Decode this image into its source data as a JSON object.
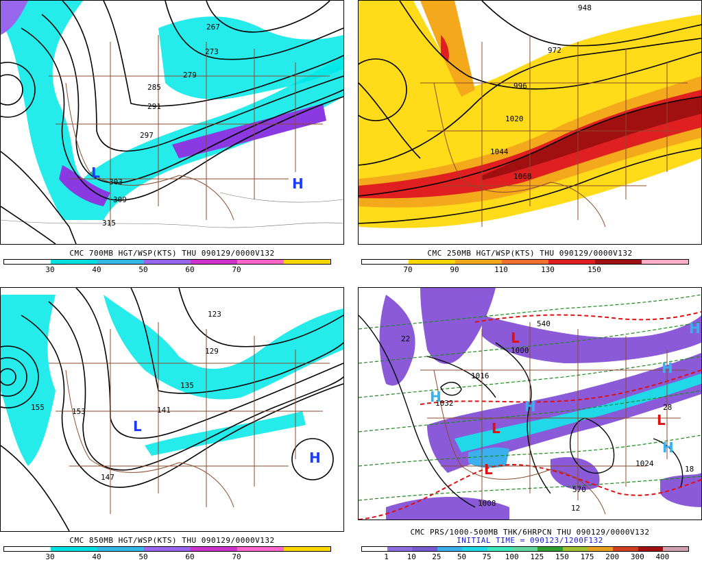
{
  "panels": [
    {
      "id": "p700",
      "caption": "CMC 700MB HGT/WSP(KTS) THU 090129/0000V132",
      "subcaption": "",
      "colorbar": {
        "colors": [
          "#ffffff",
          "#00e0e0",
          "#33b8e8",
          "#9966ee",
          "#cc33cc",
          "#ff66cc",
          "#ffd700"
        ],
        "ticks": [
          "30",
          "40",
          "50",
          "60",
          "70"
        ]
      },
      "contour_labels": [
        "267",
        "273",
        "279",
        "285",
        "291",
        "297",
        "303",
        "309",
        "315"
      ],
      "centers": [
        {
          "letter": "L",
          "color": "#1a3cff"
        },
        {
          "letter": "H",
          "color": "#1a3cff"
        }
      ]
    },
    {
      "id": "p250",
      "caption": "CMC 250MB HGT/WSP(KTS) THU 090129/0000V132",
      "subcaption": "",
      "colorbar": {
        "colors": [
          "#ffffff",
          "#ffd700",
          "#f4a81c",
          "#f07030",
          "#e02020",
          "#a01010",
          "#ffb0c8"
        ],
        "ticks": [
          "70",
          "90",
          "110",
          "130",
          "150"
        ]
      },
      "contour_labels": [
        "948",
        "972",
        "996",
        "1020",
        "1044",
        "1068"
      ],
      "centers": []
    },
    {
      "id": "p850",
      "caption": "CMC 850MB HGT/WSP(KTS) THU 090129/0000V132",
      "subcaption": "",
      "colorbar": {
        "colors": [
          "#ffffff",
          "#00e0e0",
          "#33b8e8",
          "#9966ee",
          "#cc33cc",
          "#ff66cc",
          "#ffd700"
        ],
        "ticks": [
          "30",
          "40",
          "50",
          "60",
          "70"
        ]
      },
      "contour_labels": [
        "123",
        "129",
        "135",
        "141",
        "147",
        "153",
        "155"
      ],
      "centers": [
        {
          "letter": "L",
          "color": "#1a3cff"
        },
        {
          "letter": "H",
          "color": "#1a3cff"
        }
      ]
    },
    {
      "id": "pprs",
      "caption": "CMC PRS/1000-500MB THK/6HRPCN THU 090129/0000V132",
      "subcaption": "INITIAL TIME = 090123/1200F132",
      "colorbar": {
        "colors": [
          "#ffffff",
          "#9070e0",
          "#7a5ad0",
          "#3cb0ee",
          "#20d8e8",
          "#40e8c0",
          "#60d8a0",
          "#30a030",
          "#a0c030",
          "#e8a020",
          "#d04020",
          "#a01010",
          "#d0a0b0"
        ],
        "ticks": [
          "1",
          "10",
          "25",
          "50",
          "75",
          "100",
          "125",
          "150",
          "175",
          "200",
          "300",
          "400"
        ]
      },
      "contour_labels": [
        "1000",
        "1016",
        "1032",
        "1024",
        "1008",
        "540",
        "570",
        "22",
        "28",
        "12",
        "18"
      ],
      "centers": [
        {
          "letter": "L",
          "color": "#e01010"
        },
        {
          "letter": "L",
          "color": "#e01010"
        },
        {
          "letter": "L",
          "color": "#e01010"
        },
        {
          "letter": "L",
          "color": "#e01010"
        },
        {
          "letter": "H",
          "color": "#3cb0ee"
        },
        {
          "letter": "H",
          "color": "#3cb0ee"
        },
        {
          "letter": "H",
          "color": "#3cb0ee"
        },
        {
          "letter": "H",
          "color": "#3cb0ee"
        },
        {
          "letter": "H",
          "color": "#3cb0ee"
        }
      ]
    }
  ]
}
